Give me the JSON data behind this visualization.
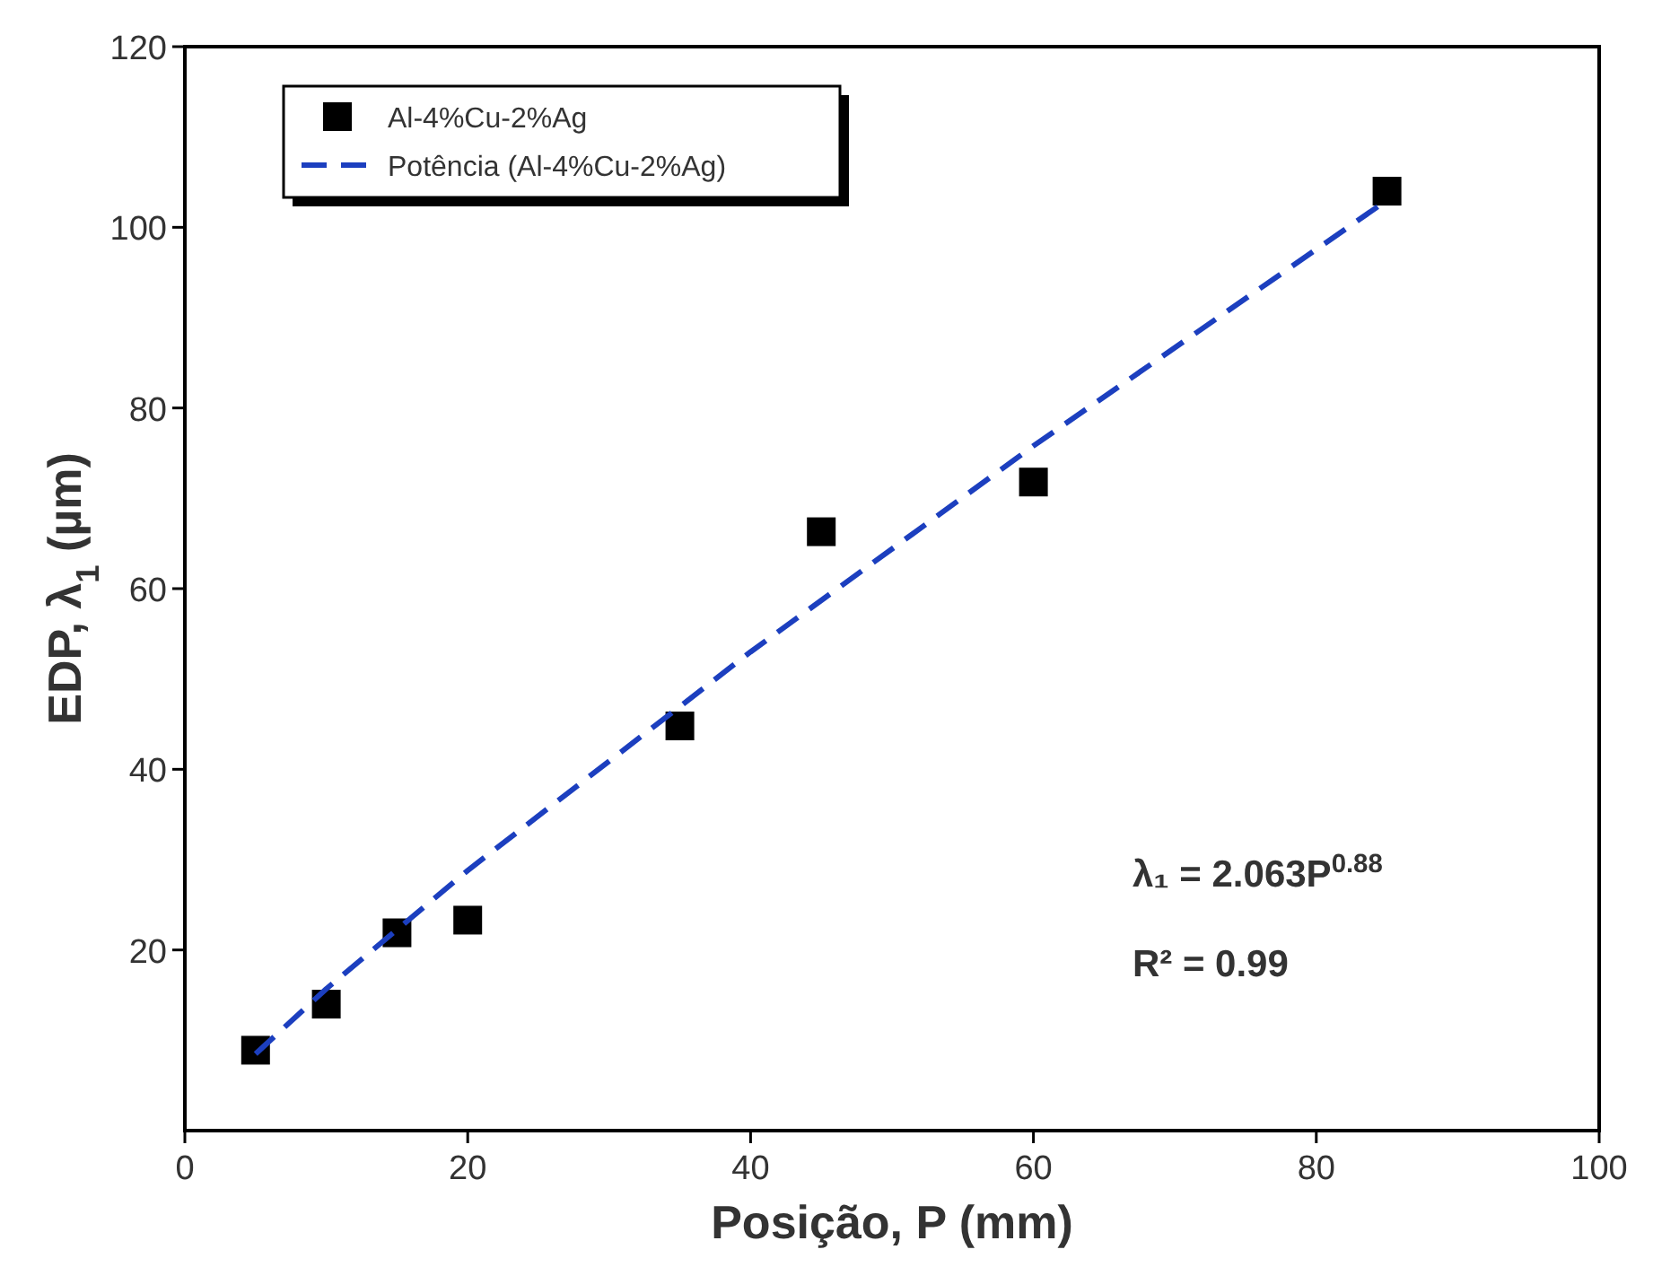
{
  "chart_data": {
    "type": "scatter",
    "xlabel": "Posição, P (mm)",
    "ylabel": "EDP, λ$_{1}$ (µm)",
    "xlim": [
      0,
      100
    ],
    "xticks": [
      0,
      20,
      40,
      60,
      80,
      100
    ],
    "ylim": [
      0,
      120
    ],
    "yticks": [
      20,
      40,
      60,
      80,
      100,
      120
    ],
    "grid": false,
    "legend": "top left",
    "series": [
      {
        "name": "Al-4%Cu-2%Ag",
        "marker": "square",
        "color": "#000000",
        "x": [
          5,
          10,
          15,
          20,
          35,
          45,
          60,
          85
        ],
        "values": [
          8.9,
          14,
          21.9,
          23.3,
          44.8,
          66.3,
          71.8,
          104
        ]
      },
      {
        "name": "Potência (Al-4%Cu-2%Ag)",
        "type": "line",
        "line_style": "dashed",
        "marker": "none",
        "color": "#1c3fbf",
        "x": [
          5,
          10,
          20,
          40,
          60,
          85
        ],
        "values": [
          8.5,
          15.7,
          28.8,
          53,
          75.8,
          103
        ]
      }
    ],
    "annotations": [
      "λ₁ = 2.063P$^{0.88}$",
      "R² = 0.99"
    ]
  }
}
